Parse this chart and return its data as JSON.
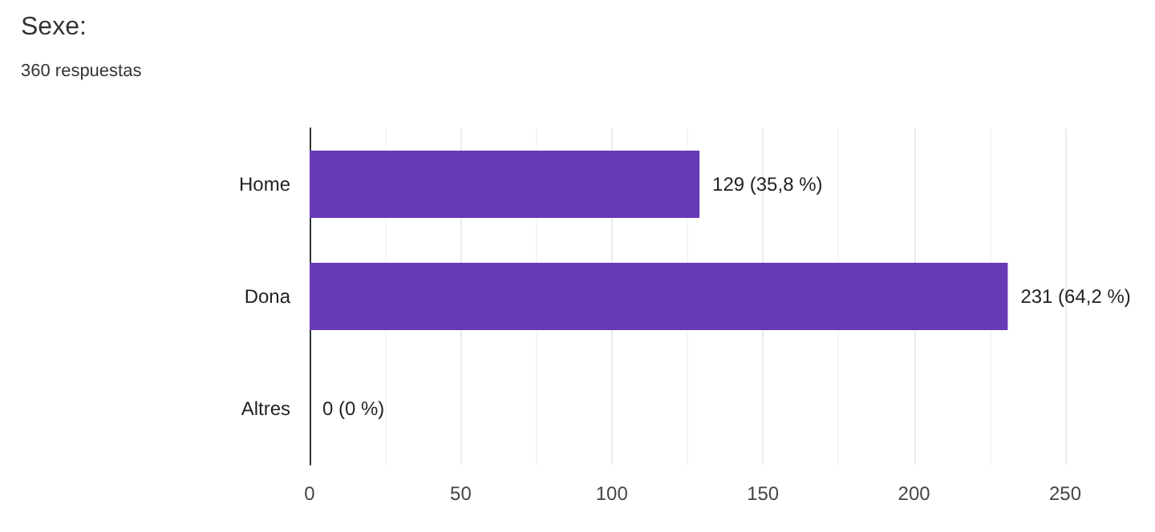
{
  "chart_data": {
    "type": "bar",
    "orientation": "horizontal",
    "title": "Sexe:",
    "subtitle": "360 respuestas",
    "categories": [
      "Home",
      "Dona",
      "Altres"
    ],
    "values": [
      129,
      231,
      0
    ],
    "color": "#673ab7",
    "value_labels": [
      "129 (35,8 %)",
      "231 (64,2 %)",
      "0 (0 %)"
    ],
    "xlim": [
      0,
      250
    ],
    "xticks": [
      0,
      50,
      100,
      150,
      200,
      250
    ],
    "grid": "x"
  }
}
